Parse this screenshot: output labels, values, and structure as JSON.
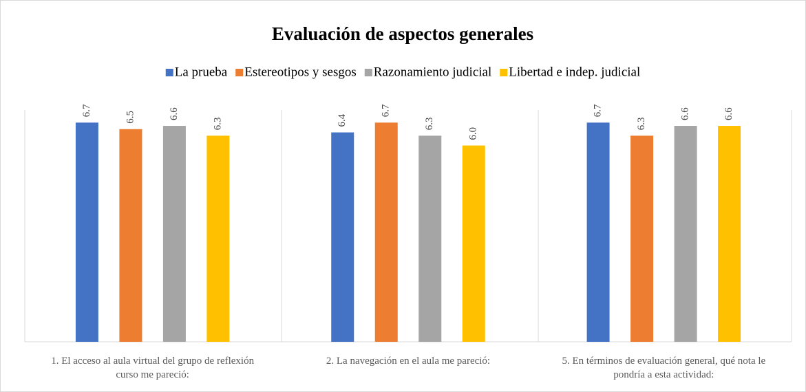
{
  "chart_data": {
    "type": "bar",
    "title": "Evaluación de aspectos generales",
    "categories": [
      "1. El acceso al aula virtual del grupo de reflexión curso me pareció:",
      "2. La navegación en el aula me pareció:",
      "5. En términos de evaluación general, qué nota le pondría a esta actividad:"
    ],
    "series": [
      {
        "name": "La prueba",
        "color": "#4472c4",
        "values": [
          6.7,
          6.4,
          6.7
        ]
      },
      {
        "name": "Estereotipos y sesgos",
        "color": "#ed7d31",
        "values": [
          6.5,
          6.7,
          6.3
        ]
      },
      {
        "name": "Razonamiento judicial",
        "color": "#a5a5a5",
        "values": [
          6.6,
          6.3,
          6.6
        ]
      },
      {
        "name": "Libertad e indep. judicial",
        "color": "#ffc000",
        "values": [
          6.3,
          6,
          6.6
        ],
        "value_labels": [
          "6.3",
          "6.0",
          "6.6"
        ]
      }
    ],
    "ylim": [
      0,
      7
    ],
    "legend": "top"
  }
}
